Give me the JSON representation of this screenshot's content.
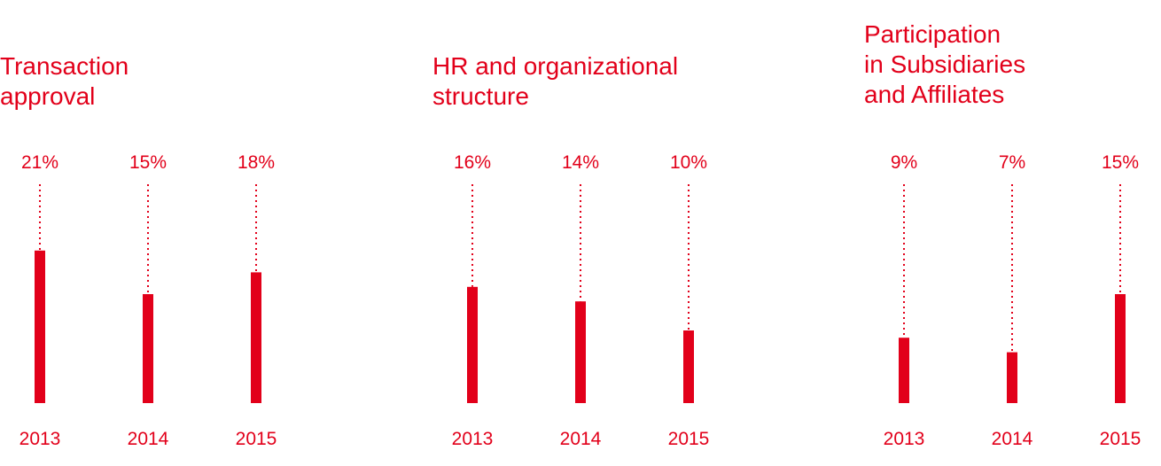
{
  "colors": {
    "accent": "#e2001a"
  },
  "chart_data": [
    {
      "type": "bar",
      "title": "Transaction approval",
      "title_lines": [
        "Transaction",
        "approval"
      ],
      "categories": [
        "2013",
        "2014",
        "2015"
      ],
      "values": [
        21,
        15,
        18
      ],
      "value_labels": [
        "21%",
        "15%",
        "18%"
      ],
      "unit": "%",
      "ylim": [
        0,
        30
      ],
      "grid": false
    },
    {
      "type": "bar",
      "title": "HR and organizational structure",
      "title_lines": [
        "HR and organizational",
        "structure"
      ],
      "categories": [
        "2013",
        "2014",
        "2015"
      ],
      "values": [
        16,
        14,
        10
      ],
      "value_labels": [
        "16%",
        "14%",
        "10%"
      ],
      "unit": "%",
      "ylim": [
        0,
        30
      ],
      "grid": false
    },
    {
      "type": "bar",
      "title": "Participation in Subsidiaries and Affiliates",
      "title_lines": [
        "Participation",
        "in Subsidiaries",
        "and Affiliates"
      ],
      "categories": [
        "2013",
        "2014",
        "2015"
      ],
      "values": [
        9,
        7,
        15
      ],
      "value_labels": [
        "9%",
        "7%",
        "15%"
      ],
      "unit": "%",
      "ylim": [
        0,
        30
      ],
      "grid": false
    }
  ]
}
